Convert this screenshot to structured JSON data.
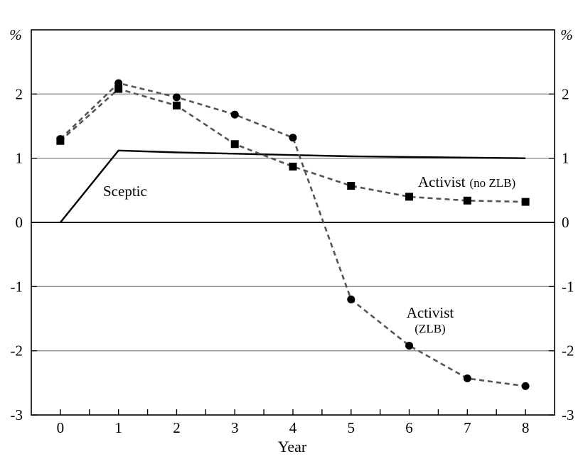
{
  "chart_data": {
    "type": "line",
    "x": [
      0,
      1,
      2,
      3,
      4,
      5,
      6,
      7,
      8
    ],
    "xlabel": "Year",
    "ylabel_left": "%",
    "ylabel_right": "%",
    "xlim": [
      -0.5,
      8.5
    ],
    "ylim": [
      -3,
      3
    ],
    "x_ticks": [
      "0",
      "1",
      "2",
      "3",
      "4",
      "5",
      "6",
      "7",
      "8"
    ],
    "y_ticks": [
      "-3",
      "-2",
      "-1",
      "0",
      "1",
      "2"
    ],
    "grid": "horizontal",
    "series": [
      {
        "id": "sceptic",
        "color": "#000000",
        "style": "solid",
        "marker": "none",
        "x": [
          0,
          1,
          2,
          3,
          4,
          5,
          6,
          7,
          8
        ],
        "values": [
          0,
          1.12,
          1.09,
          1.07,
          1.05,
          1.03,
          1.02,
          1.01,
          1.0
        ]
      },
      {
        "id": "activist-no-zlb",
        "color": "#555555",
        "style": "dashed",
        "marker": "square",
        "x": [
          0,
          1,
          2,
          3,
          4,
          5,
          6,
          7,
          8
        ],
        "values": [
          1.27,
          2.08,
          1.82,
          1.22,
          0.87,
          0.57,
          0.4,
          0.34,
          0.32
        ]
      },
      {
        "id": "activist-zlb",
        "color": "#555555",
        "style": "dashed",
        "marker": "circle",
        "x": [
          0,
          1,
          2,
          3,
          4,
          5,
          6,
          7,
          8
        ],
        "values": [
          1.3,
          2.17,
          1.95,
          1.68,
          1.32,
          -1.2,
          -1.92,
          -2.43,
          -2.55
        ]
      }
    ],
    "annotations": {
      "sceptic": "Sceptic",
      "activist_no_zlb_main": "Activist",
      "activist_no_zlb_note": "(no ZLB)",
      "activist_zlb_main": "Activist",
      "activist_zlb_note": "(ZLB)"
    }
  }
}
